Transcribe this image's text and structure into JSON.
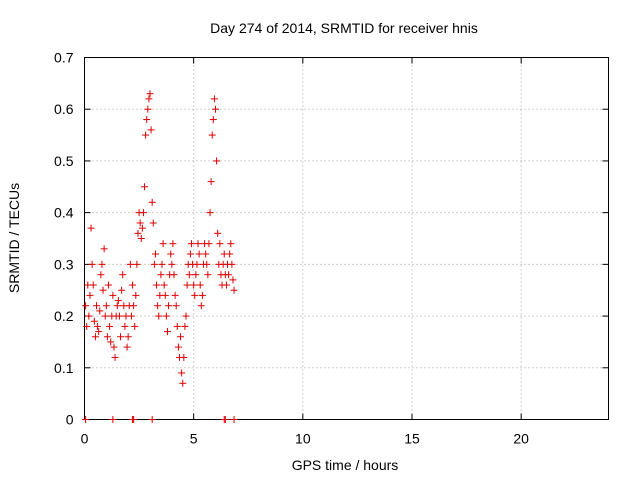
{
  "chart_data": {
    "type": "scatter",
    "title": "Day 274 of 2014, SRMTID for receiver hnis",
    "xlabel": "GPS time / hours",
    "ylabel": "SRMTID / TECUs",
    "xlim": [
      0,
      24
    ],
    "ylim": [
      0,
      0.7
    ],
    "xticks": [
      "0",
      "5",
      "10",
      "15",
      "20"
    ],
    "xtick_values": [
      0,
      5,
      10,
      15,
      20
    ],
    "yticks": [
      "0",
      "0.1",
      "0.2",
      "0.3",
      "0.4",
      "0.5",
      "0.6",
      "0.7"
    ],
    "ytick_values": [
      0,
      0.1,
      0.2,
      0.3,
      0.4,
      0.5,
      0.6,
      0.7
    ],
    "grid": true,
    "marker": "+",
    "color": "#e00000",
    "series": [
      {
        "x": [
          0.05,
          0.1,
          0.15,
          0.2,
          0.25,
          0.3,
          0.35,
          0.4,
          0.45,
          0.5,
          0.55,
          0.6,
          0.65,
          0.7,
          0.75,
          0.8,
          0.85,
          0.9,
          0.95,
          1.0,
          1.05,
          1.1,
          1.15,
          1.2,
          1.25,
          1.3,
          1.35,
          1.4,
          1.45,
          1.5,
          1.55,
          1.6,
          1.65,
          1.7,
          1.75,
          1.8,
          1.85,
          1.9,
          1.95,
          2.0,
          2.05,
          2.1,
          2.15,
          2.2,
          2.25,
          2.3,
          2.35,
          2.4,
          2.45,
          2.5,
          2.55,
          2.6,
          2.65,
          2.7,
          2.75,
          2.8,
          2.85,
          2.9,
          2.95,
          3.0,
          3.05,
          3.1,
          3.15,
          3.2,
          3.25,
          3.3,
          3.35,
          3.4,
          3.45,
          3.5,
          3.55,
          3.6,
          3.65,
          3.7,
          3.75,
          3.8,
          3.85,
          3.9,
          3.95,
          4.0,
          4.05,
          4.1,
          4.15,
          4.2,
          4.25,
          4.3,
          4.35,
          4.4,
          4.45,
          4.5,
          4.55,
          4.6,
          4.65,
          4.7,
          4.75,
          4.8,
          4.85,
          4.9,
          4.95,
          5.0,
          5.05,
          5.1,
          5.15,
          5.2,
          5.25,
          5.3,
          5.35,
          5.4,
          5.45,
          5.5,
          5.55,
          5.6,
          5.65,
          5.7,
          5.75,
          5.8,
          5.85,
          5.9,
          5.95,
          6.0,
          6.05,
          6.1,
          6.15,
          6.2,
          6.25,
          6.3,
          6.35,
          6.4,
          6.45,
          6.5,
          6.55,
          6.6,
          6.65,
          6.7,
          6.75,
          6.8,
          6.85
        ],
        "y": [
          0.22,
          0.18,
          0.26,
          0.2,
          0.24,
          0.37,
          0.3,
          0.26,
          0.19,
          0.16,
          0.22,
          0.18,
          0.17,
          0.21,
          0.28,
          0.3,
          0.25,
          0.33,
          0.2,
          0.22,
          0.16,
          0.26,
          0.18,
          0.15,
          0.2,
          0.24,
          0.14,
          0.12,
          0.2,
          0.22,
          0.23,
          0.2,
          0.16,
          0.25,
          0.28,
          0.22,
          0.18,
          0.2,
          0.14,
          0.16,
          0.22,
          0.3,
          0.2,
          0.26,
          0.22,
          0.18,
          0.24,
          0.3,
          0.36,
          0.4,
          0.38,
          0.35,
          0.37,
          0.4,
          0.45,
          0.55,
          0.58,
          0.6,
          0.62,
          0.63,
          0.56,
          0.42,
          0.38,
          0.3,
          0.32,
          0.26,
          0.22,
          0.2,
          0.24,
          0.28,
          0.3,
          0.34,
          0.26,
          0.24,
          0.2,
          0.17,
          0.22,
          0.28,
          0.32,
          0.3,
          0.34,
          0.28,
          0.24,
          0.22,
          0.18,
          0.14,
          0.12,
          0.16,
          0.09,
          0.07,
          0.12,
          0.18,
          0.2,
          0.26,
          0.3,
          0.28,
          0.32,
          0.34,
          0.3,
          0.26,
          0.24,
          0.28,
          0.3,
          0.34,
          0.32,
          0.26,
          0.22,
          0.24,
          0.3,
          0.34,
          0.32,
          0.3,
          0.28,
          0.34,
          0.4,
          0.46,
          0.55,
          0.58,
          0.62,
          0.6,
          0.5,
          0.36,
          0.3,
          0.34,
          0.28,
          0.26,
          0.3,
          0.32,
          0.28,
          0.26,
          0.3,
          0.28,
          0.32,
          0.34,
          0.3,
          0.27,
          0.25
        ]
      },
      {
        "x": [
          0.05,
          1.3,
          2.2,
          2.25,
          3.1,
          6.4,
          6.45,
          6.85
        ],
        "y": [
          0,
          0,
          0,
          0,
          0,
          0,
          0,
          0
        ]
      }
    ]
  }
}
